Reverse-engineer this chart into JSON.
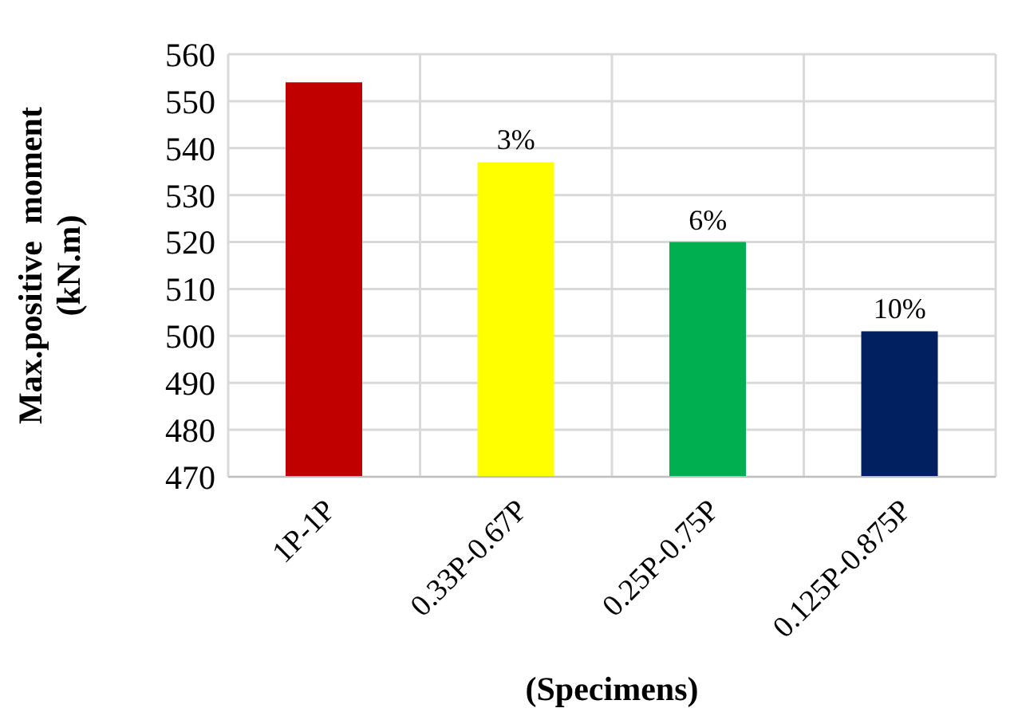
{
  "chart_data": {
    "type": "bar",
    "xlabel": "(Specimens)",
    "ylabel": "Max.positive  moment\n(kN.m)",
    "categories": [
      "1P-1P",
      "0.33P-0.67P",
      "0.25P-0.75P",
      "0.125P-0.875P"
    ],
    "values": [
      554,
      537,
      520,
      501
    ],
    "colors": [
      "#c00000",
      "#ffff00",
      "#00b050",
      "#002060"
    ],
    "annotations": [
      {
        "text": "3%",
        "x": "0.33P-0.67P",
        "y": 537
      },
      {
        "text": "6%",
        "x": "0.25P-0.75P",
        "y": 520
      },
      {
        "text": "10%",
        "x": "0.125P-0.875P",
        "y": 501
      }
    ],
    "ylim": [
      470,
      560
    ],
    "yticks": [
      470,
      480,
      490,
      500,
      510,
      520,
      530,
      540,
      550,
      560
    ],
    "grid": true
  }
}
